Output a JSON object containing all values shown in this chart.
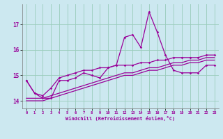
{
  "x": [
    0,
    1,
    2,
    3,
    4,
    5,
    6,
    7,
    8,
    9,
    10,
    11,
    12,
    13,
    14,
    15,
    16,
    17,
    18,
    19,
    20,
    21,
    22,
    23
  ],
  "line_main": [
    14.8,
    14.3,
    14.1,
    14.1,
    14.8,
    14.8,
    14.9,
    15.1,
    15.0,
    14.9,
    15.3,
    15.4,
    16.5,
    16.6,
    16.1,
    17.5,
    16.7,
    15.8,
    15.2,
    15.1,
    15.1,
    15.1,
    15.4,
    15.4
  ],
  "line_upper": [
    14.8,
    14.3,
    14.2,
    14.5,
    14.9,
    15.0,
    15.1,
    15.2,
    15.2,
    15.3,
    15.3,
    15.4,
    15.4,
    15.4,
    15.5,
    15.5,
    15.6,
    15.6,
    15.7,
    15.7,
    15.7,
    15.7,
    15.8,
    15.8
  ],
  "line_mid": [
    14.1,
    14.1,
    14.1,
    14.2,
    14.3,
    14.4,
    14.5,
    14.6,
    14.7,
    14.8,
    14.9,
    15.0,
    15.1,
    15.1,
    15.2,
    15.3,
    15.3,
    15.4,
    15.5,
    15.5,
    15.6,
    15.6,
    15.7,
    15.7
  ],
  "line_lower": [
    14.0,
    14.0,
    14.0,
    14.1,
    14.2,
    14.3,
    14.4,
    14.5,
    14.6,
    14.7,
    14.8,
    14.9,
    15.0,
    15.0,
    15.1,
    15.2,
    15.2,
    15.3,
    15.4,
    15.4,
    15.5,
    15.5,
    15.6,
    15.6
  ],
  "color": "#990099",
  "bg_color": "#cce8f0",
  "grid_color": "#99ccbb",
  "xlabel": "Windchill (Refroidissement éolien,°C)",
  "ylim": [
    13.7,
    17.8
  ],
  "yticks": [
    14,
    15,
    16,
    17
  ],
  "xticks": [
    0,
    1,
    2,
    3,
    4,
    5,
    6,
    7,
    8,
    9,
    10,
    11,
    12,
    13,
    14,
    15,
    16,
    17,
    18,
    19,
    20,
    21,
    22,
    23
  ],
  "xlim": [
    -0.5,
    23.5
  ]
}
